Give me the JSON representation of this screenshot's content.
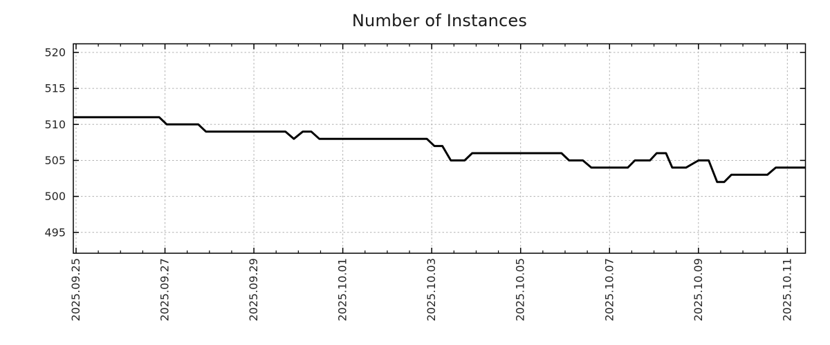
{
  "page": {
    "background": "#ffffff"
  },
  "chart_data": {
    "type": "line",
    "title": "Number of Instances",
    "legend": "none",
    "grid": {
      "show": true,
      "color": "#b0b0b0",
      "style": "dashed"
    },
    "axis_color": "#000000",
    "text_color": "#262626",
    "line_color": "#000000",
    "line_width": 3,
    "x_axis": {
      "label": "",
      "start_date": "2025.09.25",
      "tick_days": [
        0,
        2,
        4,
        6,
        8,
        10,
        12,
        14,
        16
      ],
      "tick_labels": [
        "2025.09.25",
        "2025.09.27",
        "2025.09.29",
        "2025.10.01",
        "2025.10.03",
        "2025.10.05",
        "2025.10.07",
        "2025.10.09",
        "2025.10.11"
      ],
      "minor_tick_step_days": 0.5,
      "xlim_days": [
        -0.062,
        16.407
      ]
    },
    "y_axis": {
      "label": "",
      "ticks": [
        495,
        500,
        505,
        510,
        515,
        520
      ],
      "tick_labels": [
        "495",
        "500",
        "505",
        "510",
        "515",
        "520"
      ],
      "ylim": [
        492.1,
        521.2
      ]
    },
    "series": [
      {
        "name": "instances",
        "color": "#000000",
        "points_day_value": [
          [
            -0.062,
            511
          ],
          [
            1.87,
            511
          ],
          [
            2.04,
            510
          ],
          [
            2.75,
            510
          ],
          [
            2.92,
            509
          ],
          [
            4.71,
            509
          ],
          [
            4.9,
            508
          ],
          [
            5.1,
            509
          ],
          [
            5.29,
            509
          ],
          [
            5.47,
            508
          ],
          [
            7.89,
            508
          ],
          [
            8.06,
            507
          ],
          [
            8.24,
            507
          ],
          [
            8.43,
            505
          ],
          [
            8.74,
            505
          ],
          [
            8.91,
            506
          ],
          [
            10.92,
            506
          ],
          [
            11.09,
            505
          ],
          [
            11.4,
            505
          ],
          [
            11.59,
            504
          ],
          [
            12.41,
            504
          ],
          [
            12.57,
            505
          ],
          [
            12.91,
            505
          ],
          [
            13.06,
            506
          ],
          [
            13.27,
            506
          ],
          [
            13.41,
            504
          ],
          [
            13.72,
            504
          ],
          [
            14.0,
            505
          ],
          [
            14.23,
            505
          ],
          [
            14.42,
            502
          ],
          [
            14.58,
            502
          ],
          [
            14.74,
            503
          ],
          [
            15.55,
            503
          ],
          [
            15.74,
            504
          ],
          [
            16.407,
            504
          ]
        ]
      }
    ]
  }
}
